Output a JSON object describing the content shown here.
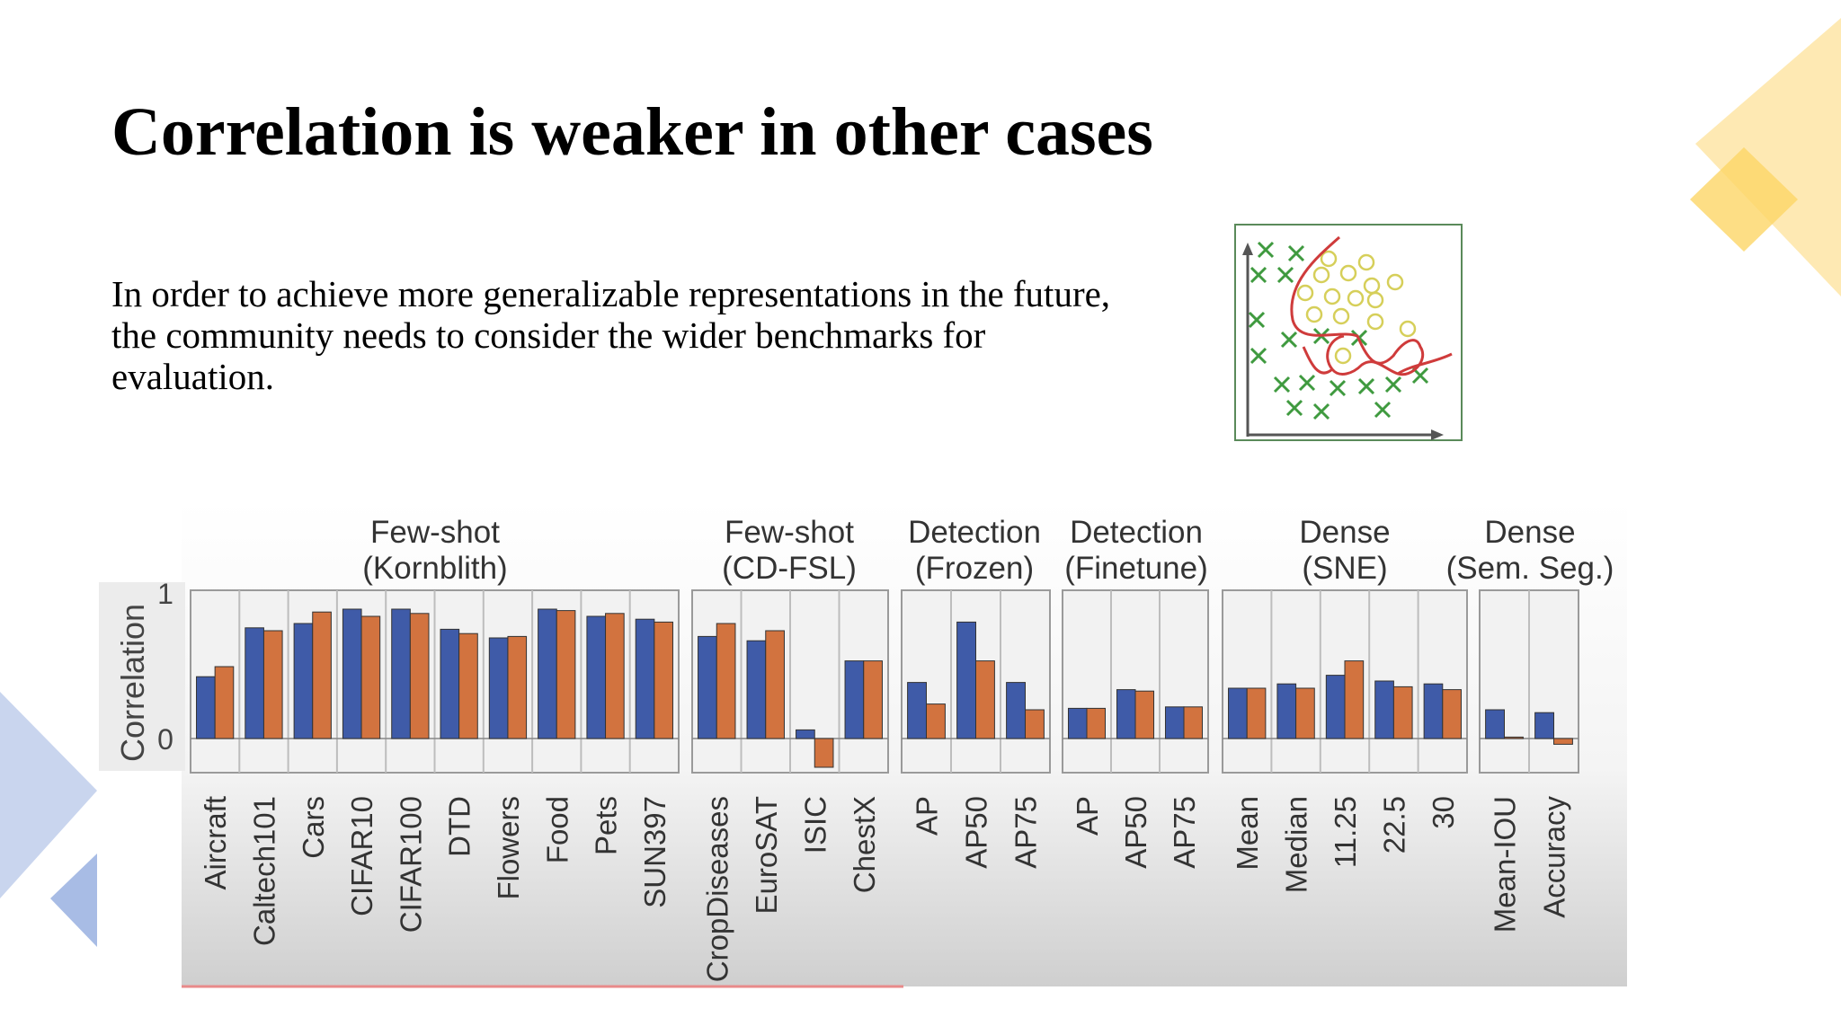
{
  "slide": {
    "title": "Correlation is weaker in other cases",
    "body_lines": [
      "In order to achieve more generalizable representations in the future,",
      "the community needs to consider the wider benchmarks for",
      "evaluation."
    ]
  },
  "colors": {
    "series_a": "#3f5ba8",
    "series_b": "#d2733f",
    "panel_fill": "#f2f2f2",
    "panel_stroke": "#9a9a9a",
    "deco_yellow": "#fde29a",
    "deco_blue": "#bccbea",
    "illustration_x": "#3f9a3f",
    "illustration_o": "#d6cf5a",
    "illustration_curve": "#cf3b3b"
  },
  "illustration": {
    "icon": "decision-boundary-scatter-icon"
  },
  "chart_data": {
    "type": "bar",
    "ylabel": "Correlation",
    "yticks": [
      "1",
      "0"
    ],
    "ylim": [
      -0.25,
      1
    ],
    "groups": [
      {
        "label_line1": "Few-shot",
        "label_line2": "(Kornblith)",
        "categories": [
          "Aircraft",
          "Caltech101",
          "Cars",
          "CIFAR10",
          "CIFAR100",
          "DTD",
          "Flowers",
          "Food",
          "Pets",
          "SUN397"
        ],
        "series": [
          {
            "values": [
              0.43,
              0.77,
              0.8,
              0.9,
              0.9,
              0.76,
              0.7,
              0.9,
              0.85,
              0.83
            ]
          },
          {
            "values": [
              0.5,
              0.75,
              0.88,
              0.85,
              0.87,
              0.73,
              0.71,
              0.89,
              0.87,
              0.81
            ]
          }
        ]
      },
      {
        "label_line1": "Few-shot",
        "label_line2": "(CD-FSL)",
        "categories": [
          "CropDiseases",
          "EuroSAT",
          "ISIC",
          "ChestX"
        ],
        "series": [
          {
            "values": [
              0.71,
              0.68,
              0.06,
              0.54
            ]
          },
          {
            "values": [
              0.8,
              0.75,
              -0.2,
              0.54
            ]
          }
        ]
      },
      {
        "label_line1": "Detection",
        "label_line2": "(Frozen)",
        "categories": [
          "AP",
          "AP50",
          "AP75"
        ],
        "series": [
          {
            "values": [
              0.39,
              0.81,
              0.39
            ]
          },
          {
            "values": [
              0.24,
              0.54,
              0.2
            ]
          }
        ]
      },
      {
        "label_line1": "Detection",
        "label_line2": "(Finetune)",
        "categories": [
          "AP",
          "AP50",
          "AP75"
        ],
        "series": [
          {
            "values": [
              0.21,
              0.34,
              0.22
            ]
          },
          {
            "values": [
              0.21,
              0.33,
              0.22
            ]
          }
        ]
      },
      {
        "label_line1": "Dense",
        "label_line2": "(SNE)",
        "categories": [
          "Mean",
          "Median",
          "11.25",
          "22.5",
          "30"
        ],
        "series": [
          {
            "values": [
              0.35,
              0.38,
              0.44,
              0.4,
              0.38
            ]
          },
          {
            "values": [
              0.35,
              0.35,
              0.54,
              0.36,
              0.34
            ]
          }
        ]
      },
      {
        "label_line1": "Dense",
        "label_line2": "(Sem. Seg.)",
        "categories": [
          "Mean-IOU",
          "Accuracy"
        ],
        "series": [
          {
            "values": [
              0.2,
              0.18
            ]
          },
          {
            "values": [
              0.01,
              -0.04
            ]
          }
        ]
      }
    ]
  }
}
